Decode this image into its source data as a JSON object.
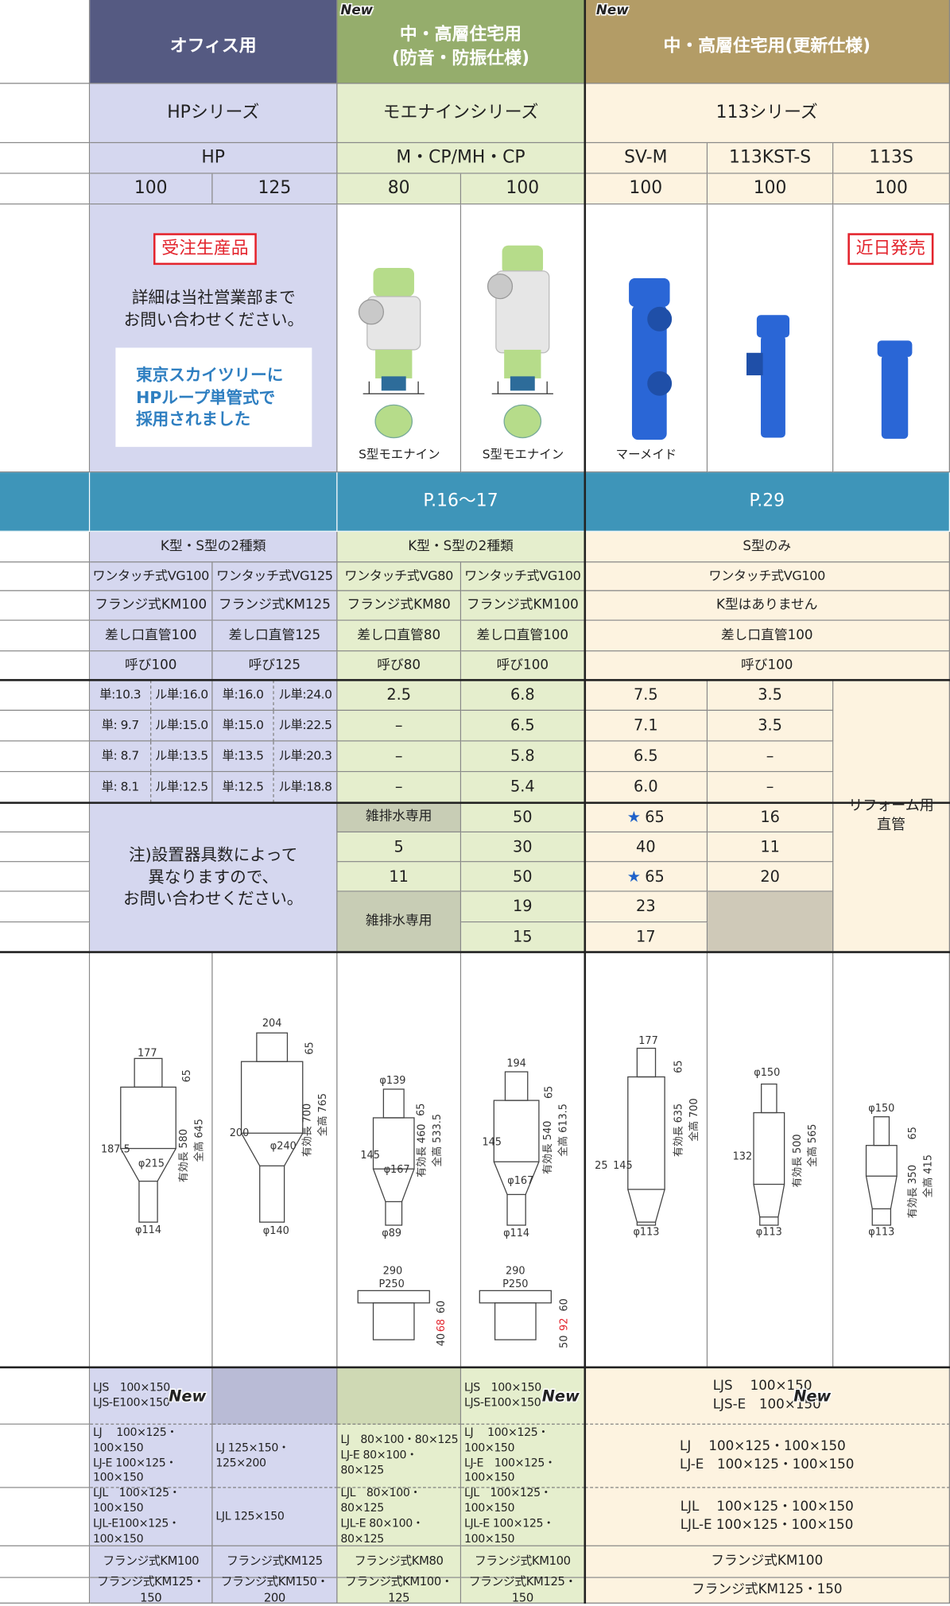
{
  "header": {
    "new_badges": [
      "New",
      "New"
    ],
    "groups": [
      "オフィス用",
      "中・高層住宅用\n(防音・防振仕様)",
      "中・高層住宅用(更新仕様)"
    ]
  },
  "series": [
    "HPシリーズ",
    "モエナインシリーズ",
    "113シリーズ"
  ],
  "models": [
    "HP",
    "M・CP/MH・CP",
    "SV-M",
    "113KST-S",
    "113S"
  ],
  "sizes": [
    "100",
    "125",
    "80",
    "100",
    "100",
    "100",
    "100"
  ],
  "products": {
    "badges": [
      "受注生産品",
      "近日発売"
    ],
    "note": "詳細は当社営業部まで\nお問い合わせください。",
    "highlight": "東京スカイツリーに\nHPループ単管式で\n採用されました",
    "captions": [
      "S型モエナイン",
      "S型モエナイン",
      "マーメイド"
    ]
  },
  "pages": [
    "P.16〜17",
    "P.29"
  ],
  "spec_rows": [
    [
      "K型・S型の2種類",
      "K型・S型の2種類",
      "S型のみ"
    ],
    [
      "ワンタッチ式VG100",
      "ワンタッチ式VG125",
      "ワンタッチ式VG80",
      "ワンタッチ式VG100",
      "ワンタッチ式VG100"
    ],
    [
      "フランジ式KM100",
      "フランジ式KM125",
      "フランジ式KM80",
      "フランジ式KM100",
      "K型はありません"
    ],
    [
      "差し口直管100",
      "差し口直管125",
      "差し口直管80",
      "差し口直管100",
      "差し口直管100"
    ],
    [
      "呼び100",
      "呼び125",
      "呼び80",
      "呼び100",
      "呼び100"
    ]
  ],
  "flow_rows": [
    [
      "単:10.3",
      "ル単:16.0",
      "単:16.0",
      "ル単:24.0",
      "2.5",
      "6.8",
      "7.5",
      "3.5"
    ],
    [
      "単: 9.7",
      "ル単:15.0",
      "単:15.0",
      "ル単:22.5",
      "–",
      "6.5",
      "7.1",
      "3.5"
    ],
    [
      "単: 8.7",
      "ル単:13.5",
      "単:13.5",
      "ル単:20.3",
      "–",
      "5.8",
      "6.5",
      "–"
    ],
    [
      "単: 8.1",
      "ル単:12.5",
      "単:12.5",
      "ル単:18.8",
      "–",
      "5.4",
      "6.0",
      "–"
    ]
  ],
  "reform_note": "リフォーム用\n直管",
  "fixture_note": "注)設置器具数によって\n異なりますので、\nお問い合わせください。",
  "fixture_rows": [
    [
      "雑排水専用",
      "50",
      {
        "star": "★",
        "value": "65"
      },
      "16"
    ],
    [
      "5",
      "30",
      "40",
      "11"
    ],
    [
      "11",
      "50",
      {
        "star": "★",
        "value": "65"
      },
      "20"
    ],
    [
      "雑排水専用",
      "19",
      "23"
    ],
    [
      "15",
      "17"
    ]
  ],
  "drawings": [
    [
      "177",
      "65",
      "187.5",
      "φ215",
      "有効長 580",
      "全高 645",
      "φ114"
    ],
    [
      "204",
      "65",
      "200",
      "φ240",
      "有効長 700",
      "全高 765",
      "φ140"
    ],
    [
      "φ139",
      "65",
      "145",
      "φ167",
      "有効長 460",
      "全高 533.5",
      "φ89",
      "290",
      "P250",
      "60",
      "68",
      "40"
    ],
    [
      "194",
      "65",
      "145",
      "φ167",
      "有効長 540",
      "全高 613.5",
      "φ114",
      "290",
      "P250",
      "60",
      "92",
      "50"
    ],
    [
      "177",
      "65",
      "25",
      "145",
      "有効長 635",
      "全高 700",
      "φ113"
    ],
    [
      "φ150",
      "132",
      "有効長 500",
      "全高 565",
      "φ113"
    ],
    [
      "φ150",
      "65",
      "有効長 350",
      "全高 415",
      "φ113"
    ]
  ],
  "joints": {
    "new_badges": [
      "New",
      "New",
      "New"
    ],
    "rows": [
      [
        "LJS　100×150\nLJS-E100×150",
        "LJS　100×150\nLJS-E100×150",
        "LJS　 100×150\nLJS-E　100×150"
      ],
      [
        "LJ　 100×125・100×150\nLJ-E 100×125・100×150",
        "LJ  125×150・125×200",
        "LJ　80×100・80×125\nLJ-E 80×100・80×125",
        "LJ　 100×125・100×150\nLJ-E　100×125・100×150",
        "LJ　 100×125・100×150\nLJ-E　100×125・100×150"
      ],
      [
        "LJL　100×125・100×150\nLJL-E100×125・100×150",
        "LJL 125×150",
        "LJL　80×100・80×125\nLJL-E 80×100・80×125",
        "LJL　100×125・100×150\nLJL-E 100×125・100×150",
        "LJL　 100×125・100×150\nLJL-E 100×125・100×150"
      ],
      [
        "フランジ式KM100",
        "フランジ式KM125",
        "フランジ式KM80",
        "フランジ式KM100",
        "フランジ式KM100"
      ],
      [
        "フランジ式KM125・150",
        "フランジ式KM150・200",
        "フランジ式KM100・125",
        "フランジ式KM125・150",
        "フランジ式KM125・150"
      ]
    ]
  }
}
